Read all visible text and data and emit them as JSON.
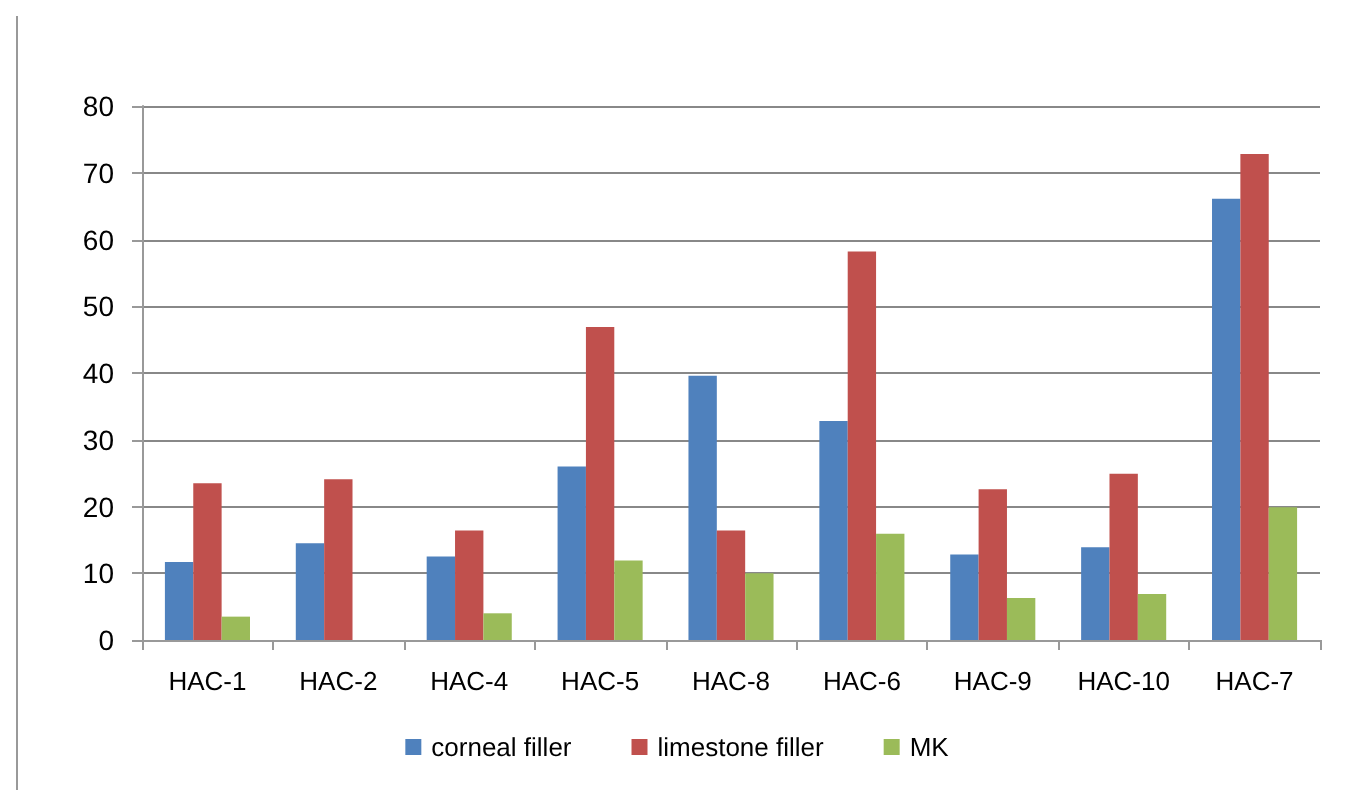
{
  "chart_data": {
    "type": "bar",
    "categories": [
      "HAC-1",
      "HAC-2",
      "HAC-4",
      "HAC-5",
      "HAC-8",
      "HAC-6",
      "HAC-9",
      "HAC-10",
      "HAC-7"
    ],
    "series": [
      {
        "name": "corneal filler",
        "color": "#4f81bd",
        "values": [
          11.7,
          14.5,
          12.5,
          26,
          39.6,
          32.8,
          12.8,
          13.9,
          66.1
        ]
      },
      {
        "name": "limestone filler",
        "color": "#c0504d",
        "values": [
          23.5,
          24.1,
          16.4,
          46.9,
          16.4,
          58.2,
          22.6,
          24.9,
          72.8
        ]
      },
      {
        "name": "MK",
        "color": "#9bbb59",
        "values": [
          3.5,
          null,
          4,
          11.9,
          10,
          15.9,
          6.3,
          6.9,
          19.9
        ]
      }
    ],
    "ylim": [
      0,
      80
    ],
    "yticks": [
      0,
      10,
      20,
      30,
      40,
      50,
      60,
      70,
      80
    ],
    "grid": "y",
    "legend": "bottom"
  }
}
